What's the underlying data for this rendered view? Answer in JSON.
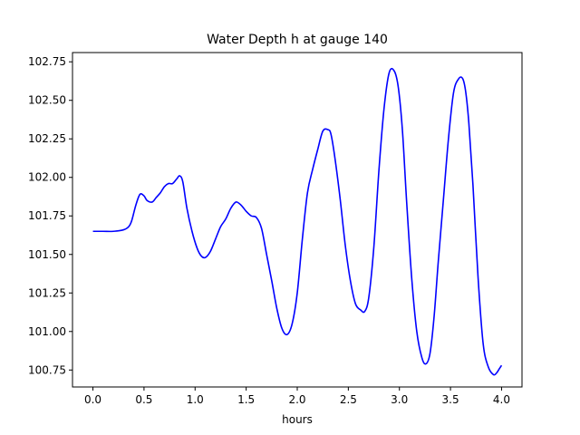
{
  "chart_data": {
    "type": "line",
    "title": "Water Depth h at gauge 140",
    "xlabel": "hours",
    "ylabel": "",
    "xlim": [
      -0.2,
      4.2
    ],
    "ylim": [
      100.64,
      102.81
    ],
    "xticks": [
      0.0,
      0.5,
      1.0,
      1.5,
      2.0,
      2.5,
      3.0,
      3.5,
      4.0
    ],
    "xtick_labels": [
      "0.0",
      "0.5",
      "1.0",
      "1.5",
      "2.0",
      "2.5",
      "3.0",
      "3.5",
      "4.0"
    ],
    "yticks": [
      100.75,
      101.0,
      101.25,
      101.5,
      101.75,
      102.0,
      102.25,
      102.5,
      102.75
    ],
    "ytick_labels": [
      "100.75",
      "101.00",
      "101.25",
      "101.50",
      "101.75",
      "102.00",
      "102.25",
      "102.50",
      "102.75"
    ],
    "grid": false,
    "series": [
      {
        "color": "#0000ff",
        "x": [
          0.0,
          0.1,
          0.2,
          0.3,
          0.35,
          0.38,
          0.42,
          0.46,
          0.5,
          0.53,
          0.58,
          0.62,
          0.66,
          0.7,
          0.74,
          0.78,
          0.82,
          0.85,
          0.88,
          0.92,
          0.97,
          1.02,
          1.06,
          1.1,
          1.15,
          1.2,
          1.25,
          1.3,
          1.35,
          1.4,
          1.45,
          1.5,
          1.55,
          1.6,
          1.65,
          1.7,
          1.75,
          1.8,
          1.85,
          1.9,
          1.95,
          2.0,
          2.05,
          2.1,
          2.15,
          2.2,
          2.25,
          2.3,
          2.33,
          2.37,
          2.42,
          2.47,
          2.52,
          2.57,
          2.62,
          2.66,
          2.7,
          2.75,
          2.8,
          2.85,
          2.9,
          2.95,
          2.99,
          3.03,
          3.07,
          3.12,
          3.17,
          3.22,
          3.26,
          3.3,
          3.34,
          3.38,
          3.43,
          3.48,
          3.53,
          3.58,
          3.62,
          3.65,
          3.68,
          3.72,
          3.77,
          3.82,
          3.87,
          3.92,
          3.95,
          3.98,
          4.0
        ],
        "y": [
          101.65,
          101.65,
          101.65,
          101.66,
          101.68,
          101.72,
          101.82,
          101.89,
          101.88,
          101.85,
          101.84,
          101.87,
          101.9,
          101.94,
          101.96,
          101.96,
          101.99,
          102.01,
          101.97,
          101.8,
          101.65,
          101.54,
          101.49,
          101.48,
          101.52,
          101.6,
          101.68,
          101.73,
          101.8,
          101.84,
          101.82,
          101.78,
          101.75,
          101.74,
          101.67,
          101.5,
          101.33,
          101.15,
          101.02,
          100.98,
          101.05,
          101.25,
          101.6,
          101.9,
          102.05,
          102.18,
          102.3,
          102.31,
          102.28,
          102.12,
          101.86,
          101.56,
          101.33,
          101.18,
          101.14,
          101.13,
          101.22,
          101.55,
          102.05,
          102.45,
          102.68,
          102.69,
          102.58,
          102.3,
          101.85,
          101.35,
          101.0,
          100.83,
          100.79,
          100.86,
          101.1,
          101.45,
          101.85,
          102.25,
          102.55,
          102.64,
          102.64,
          102.55,
          102.35,
          101.95,
          101.35,
          100.92,
          100.77,
          100.72,
          100.73,
          100.76,
          100.78
        ]
      }
    ]
  }
}
